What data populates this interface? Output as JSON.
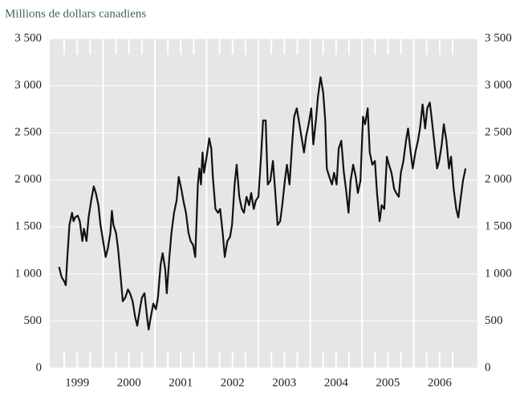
{
  "chart_data": {
    "type": "line",
    "title": "Millions de dollars canadiens",
    "x": [
      1999.15,
      1999.2,
      1999.25,
      1999.28,
      1999.31,
      1999.35,
      1999.4,
      1999.43,
      1999.46,
      1999.51,
      1999.55,
      1999.6,
      1999.63,
      1999.68,
      1999.72,
      1999.77,
      1999.82,
      1999.86,
      1999.91,
      1999.95,
      2000.0,
      2000.05,
      2000.09,
      2000.14,
      2000.17,
      2000.2,
      2000.25,
      2000.29,
      2000.34,
      2000.38,
      2000.43,
      2000.48,
      2000.52,
      2000.57,
      2000.62,
      2000.66,
      2000.71,
      2000.75,
      2000.8,
      2000.85,
      2000.88,
      2000.92,
      2000.97,
      2001.02,
      2001.06,
      2001.11,
      2001.15,
      2001.2,
      2001.23,
      2001.28,
      2001.32,
      2001.37,
      2001.42,
      2001.46,
      2001.51,
      2001.55,
      2001.6,
      2001.65,
      2001.69,
      2001.74,
      2001.78,
      2001.83,
      2001.86,
      2001.89,
      2001.92,
      2001.95,
      2002.0,
      2002.05,
      2002.09,
      2002.12,
      2002.17,
      2002.22,
      2002.26,
      2002.31,
      2002.35,
      2002.4,
      2002.45,
      2002.49,
      2002.54,
      2002.58,
      2002.63,
      2002.68,
      2002.72,
      2002.77,
      2002.82,
      2002.86,
      2002.91,
      2002.95,
      2003.0,
      2003.05,
      2003.09,
      2003.14,
      2003.18,
      2003.23,
      2003.28,
      2003.32,
      2003.37,
      2003.42,
      2003.46,
      2003.51,
      2003.55,
      2003.6,
      2003.65,
      2003.69,
      2003.74,
      2003.78,
      2003.83,
      2003.88,
      2003.92,
      2003.97,
      2004.02,
      2004.06,
      2004.11,
      2004.15,
      2004.2,
      2004.25,
      2004.29,
      2004.32,
      2004.37,
      2004.42,
      2004.46,
      2004.51,
      2004.55,
      2004.6,
      2004.65,
      2004.69,
      2004.74,
      2004.78,
      2004.83,
      2004.88,
      2004.92,
      2004.97,
      2005.02,
      2005.06,
      2005.11,
      2005.15,
      2005.2,
      2005.25,
      2005.29,
      2005.34,
      2005.38,
      2005.43,
      2005.48,
      2005.52,
      2005.57,
      2005.62,
      2005.66,
      2005.71,
      2005.75,
      2005.8,
      2005.85,
      2005.89,
      2005.94,
      2005.98,
      2006.03,
      2006.08,
      2006.12,
      2006.17,
      2006.22,
      2006.26,
      2006.31,
      2006.35,
      2006.4,
      2006.45,
      2006.49,
      2006.54,
      2006.58,
      2006.63,
      2006.68,
      2006.72,
      2006.77,
      2006.82,
      2006.86,
      2006.91,
      2006.95,
      2007.0
    ],
    "values": [
      1075,
      965,
      920,
      880,
      1180,
      1520,
      1650,
      1560,
      1600,
      1620,
      1560,
      1350,
      1480,
      1350,
      1600,
      1780,
      1930,
      1860,
      1730,
      1520,
      1350,
      1180,
      1265,
      1435,
      1670,
      1520,
      1435,
      1265,
      965,
      710,
      750,
      835,
      795,
      710,
      540,
      450,
      625,
      750,
      795,
      540,
      410,
      540,
      685,
      625,
      750,
      1095,
      1220,
      1050,
      795,
      1180,
      1435,
      1650,
      1780,
      2030,
      1905,
      1780,
      1650,
      1435,
      1350,
      1305,
      1180,
      1950,
      2120,
      1950,
      2290,
      2075,
      2245,
      2440,
      2330,
      2030,
      1690,
      1650,
      1690,
      1435,
      1180,
      1350,
      1390,
      1520,
      1950,
      2160,
      1820,
      1690,
      1650,
      1820,
      1730,
      1860,
      1690,
      1780,
      1820,
      2245,
      2630,
      2630,
      1950,
      1990,
      2200,
      1905,
      1520,
      1560,
      1730,
      1990,
      2160,
      1950,
      2375,
      2670,
      2760,
      2630,
      2460,
      2290,
      2460,
      2590,
      2760,
      2375,
      2630,
      2885,
      3090,
      2930,
      2630,
      2120,
      2030,
      1950,
      2075,
      1950,
      2330,
      2415,
      2075,
      1905,
      1650,
      1990,
      2160,
      2030,
      1860,
      1990,
      2670,
      2590,
      2760,
      2290,
      2160,
      2200,
      1860,
      1560,
      1730,
      1690,
      2245,
      2160,
      2075,
      1905,
      1860,
      1820,
      2075,
      2200,
      2415,
      2545,
      2290,
      2120,
      2290,
      2415,
      2545,
      2800,
      2545,
      2760,
      2820,
      2630,
      2375,
      2120,
      2200,
      2375,
      2590,
      2415,
      2120,
      2245,
      1905,
      1690,
      1600,
      1820,
      1990,
      2120
    ],
    "color": "#111111",
    "xlim": [
      1998.97,
      2007.23
    ],
    "xticks": [
      {
        "value": 1999.5,
        "label": "1999"
      },
      {
        "value": 2000.5,
        "label": "2000"
      },
      {
        "value": 2001.5,
        "label": "2001"
      },
      {
        "value": 2002.5,
        "label": "2002"
      },
      {
        "value": 2003.5,
        "label": "2003"
      },
      {
        "value": 2004.5,
        "label": "2004"
      },
      {
        "value": 2005.5,
        "label": "2005"
      },
      {
        "value": 2006.5,
        "label": "2006"
      }
    ],
    "year_boundaries": [
      2000,
      2001,
      2002,
      2003,
      2004,
      2005,
      2006
    ],
    "ylim": [
      0,
      3500
    ],
    "yticks": [
      0,
      500,
      {
        "value": 1000,
        "label": "1 000"
      },
      {
        "value": 1500,
        "label": "1 500"
      },
      {
        "value": 2000,
        "label": "2 000"
      },
      {
        "value": 2500,
        "label": "2 500"
      },
      {
        "value": 3000,
        "label": "3 000"
      },
      {
        "value": 3500,
        "label": "3 500"
      }
    ],
    "y2lim": [
      0,
      3500
    ],
    "y2ticks": [
      0,
      500,
      {
        "value": 1000,
        "label": "1 000"
      },
      {
        "value": 1500,
        "label": "1 500"
      },
      {
        "value": 2000,
        "label": "2 000"
      },
      {
        "value": 2500,
        "label": "2 500"
      },
      {
        "value": 3000,
        "label": "3 000"
      },
      {
        "value": 3500,
        "label": "3 500"
      }
    ],
    "grid": true
  }
}
